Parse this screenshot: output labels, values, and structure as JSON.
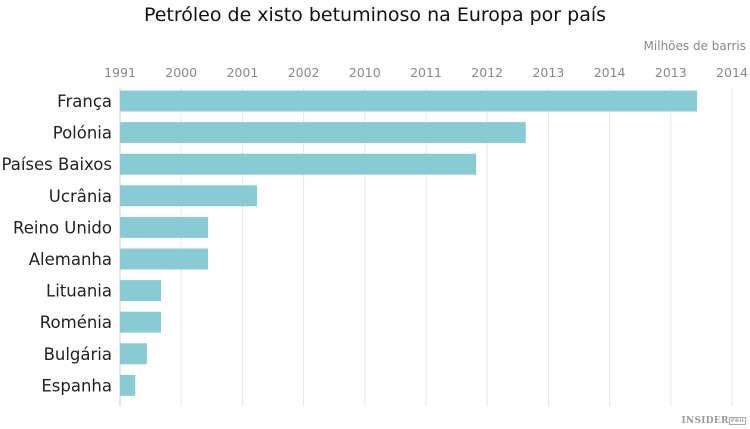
{
  "chart_data": {
    "type": "bar",
    "orientation": "horizontal",
    "title": "Petróleo de xisto betuminoso na Europa por país",
    "unit_label": "Milhões de barris",
    "tick_labels": [
      "1991",
      "2000",
      "2001",
      "2002",
      "2010",
      "2011",
      "2012",
      "2013",
      "2014",
      "2013",
      "2014"
    ],
    "categories": [
      "França",
      "Polónia",
      "Países Baixos",
      "Ucrânia",
      "Reino Unido",
      "Alemanha",
      "Lituania",
      "Roménia",
      "Bulgária",
      "Espanha"
    ],
    "values": [
      9.43,
      6.63,
      5.82,
      2.24,
      1.44,
      1.44,
      0.67,
      0.67,
      0.44,
      0.25
    ],
    "value_units": "tick index (0 = first tick label, 10 = last)",
    "xlim": [
      0,
      10
    ],
    "grid": true,
    "bar_color": "#88cbd3",
    "grid_color": "#e6e6e6"
  },
  "branding": {
    "logo": "INSIDER PRO"
  }
}
